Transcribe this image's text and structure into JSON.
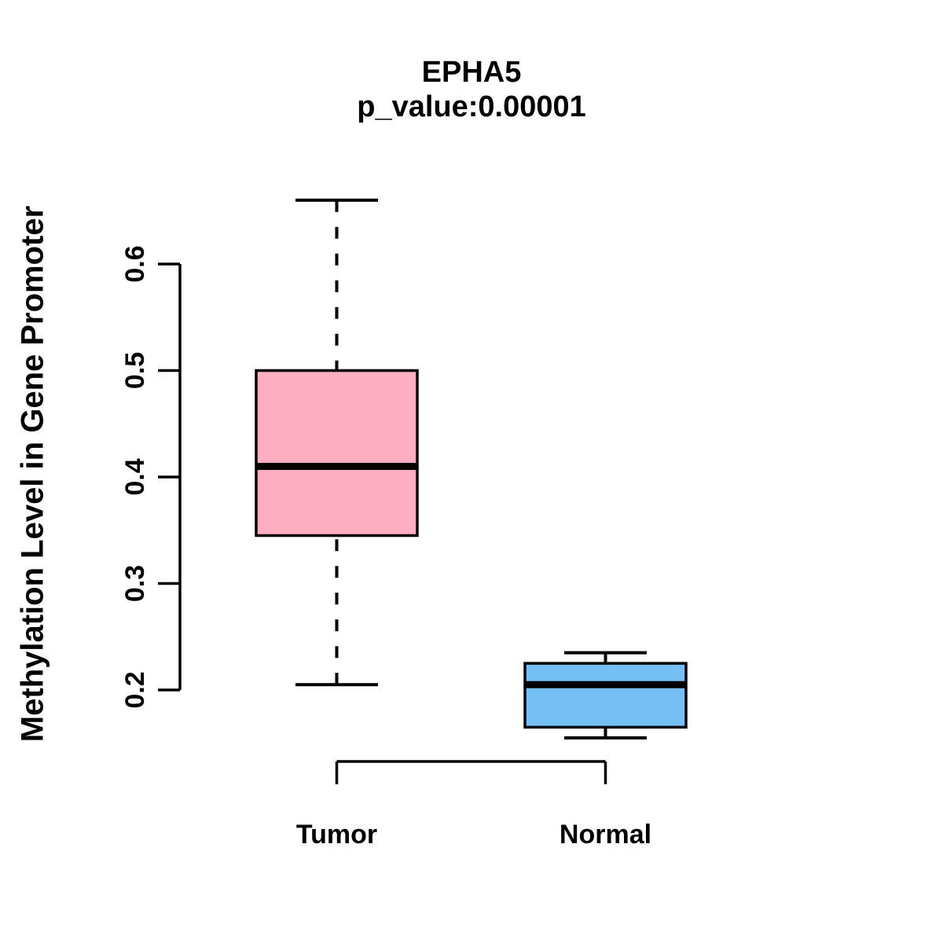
{
  "title": "EPHA5",
  "subtitle": "p_value:0.00001",
  "ylabel": "Methylation Level in Gene Promoter",
  "colors": {
    "tumor_fill": "#FDAEC0",
    "normal_fill": "#74BFF4",
    "stroke": "#000000",
    "background": "#ffffff"
  },
  "chart_data": {
    "type": "boxplot",
    "title": "EPHA5",
    "subtitle": "p_value:0.00001",
    "ylabel": "Methylation Level in Gene Promoter",
    "categories": [
      "Tumor",
      "Normal"
    ],
    "series": [
      {
        "name": "Tumor",
        "lower_whisker": 0.205,
        "q1": 0.345,
        "median": 0.41,
        "q3": 0.5,
        "upper_whisker": 0.66,
        "color": "#FDAEC0"
      },
      {
        "name": "Normal",
        "lower_whisker": 0.155,
        "q1": 0.165,
        "median": 0.205,
        "q3": 0.225,
        "upper_whisker": 0.235,
        "color": "#74BFF4"
      }
    ],
    "yticks": [
      "0.2",
      "0.3",
      "0.4",
      "0.5",
      "0.6"
    ],
    "ylim": [
      0.2,
      0.6
    ],
    "grid": false,
    "legend": "none",
    "whisker_style": "dashed"
  }
}
